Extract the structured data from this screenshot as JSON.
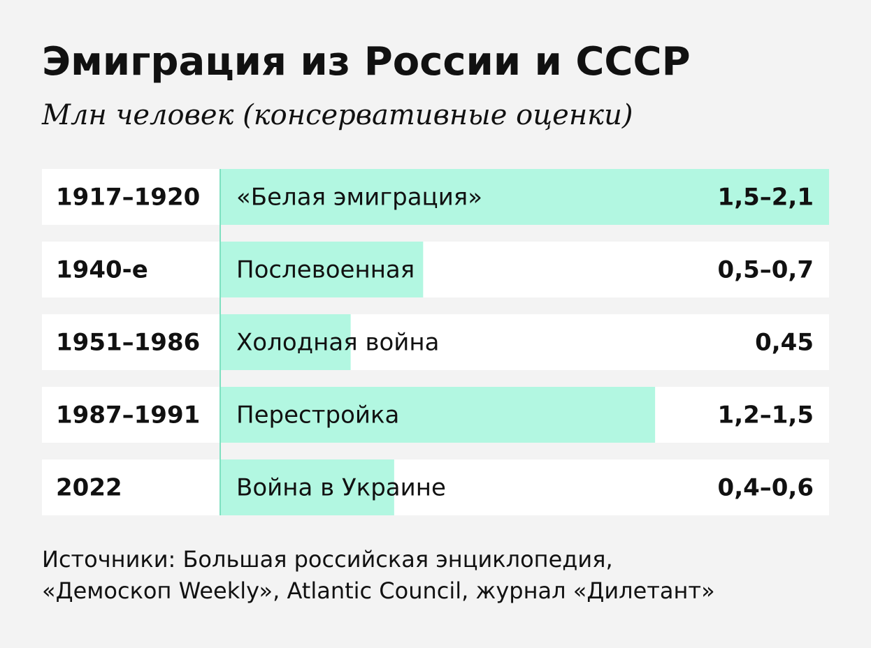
{
  "chart_data": {
    "type": "bar",
    "title": "Эмиграция из России и СССР",
    "subtitle": "Млн человек (консервативные оценки)",
    "categories": [
      "1917–1920",
      "1940-е",
      "1951–1986",
      "1987–1991",
      "2022"
    ],
    "names": [
      "«Белая эмиграция»",
      "Послевоенная",
      "Холодная война",
      "Перестройка",
      "Война в Украине"
    ],
    "values_low": [
      1.5,
      0.5,
      0.45,
      1.2,
      0.4
    ],
    "values": [
      2.1,
      0.7,
      0.45,
      1.5,
      0.6
    ],
    "value_labels": [
      "1,5–2,1",
      "0,5–0,7",
      "0,45",
      "1,2–1,5",
      "0,4–0,6"
    ],
    "color": "#b2f7e1",
    "source": [
      "Источники: Большая российская энциклопедия,",
      "«Демоскоп Weekly», Atlantic Council, журнал «Дилетант»"
    ]
  }
}
